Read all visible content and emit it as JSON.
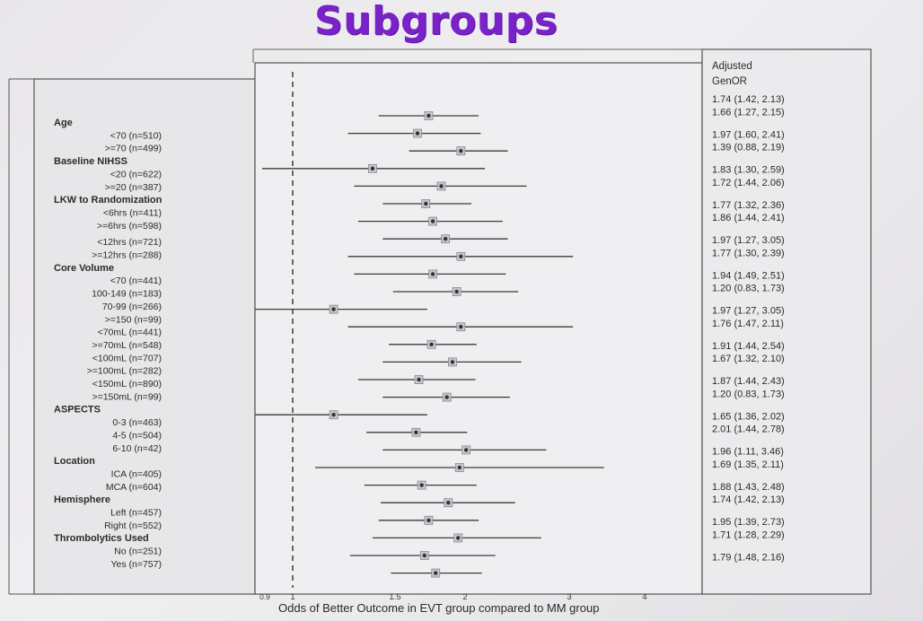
{
  "title": "Subgroups",
  "chart_data": {
    "type": "forest",
    "title": "Subgroups",
    "xlabel": "Odds of Better Outcome in EVT group compared to MM group",
    "x_ticks": [
      "0.9",
      "1",
      "1.5",
      "2",
      "3",
      "4"
    ],
    "reference_line": 1,
    "column_header": [
      "Adjusted",
      "GenOR"
    ],
    "row_labels": [
      {
        "text": "Age",
        "heading": true
      },
      {
        "text": "<70 (n=510)"
      },
      {
        "text": ">=70 (n=499)"
      },
      {
        "text": "Baseline NIHSS",
        "heading": true
      },
      {
        "text": "<20 (n=622)"
      },
      {
        "text": ">=20 (n=387)"
      },
      {
        "text": "LKW to Randomization",
        "heading": true
      },
      {
        "text": "<6hrs (n=411)"
      },
      {
        "text": ">=6hrs (n=598)"
      },
      {
        "text": "<12hrs (n=721)"
      },
      {
        "text": ">=12hrs (n=288)"
      },
      {
        "text": "Core Volume",
        "heading": true
      },
      {
        "text": "<70 (n=441)"
      },
      {
        "text": "100-149 (n=183)"
      },
      {
        "text": "70-99 (n=266)"
      },
      {
        "text": ">=150 (n=99)"
      },
      {
        "text": "<70mL (n=441)"
      },
      {
        "text": ">=70mL (n=548)"
      },
      {
        "text": "<100mL (n=707)"
      },
      {
        "text": ">=100mL (n=282)"
      },
      {
        "text": "<150mL (n=890)"
      },
      {
        "text": ">=150mL (n=99)"
      },
      {
        "text": "ASPECTS",
        "heading": true
      },
      {
        "text": "0-3 (n=463)"
      },
      {
        "text": "4-5 (n=504)"
      },
      {
        "text": "6-10 (n=42)"
      },
      {
        "text": "Location",
        "heading": true
      },
      {
        "text": "ICA (n=405)"
      },
      {
        "text": "MCA (n=604)"
      },
      {
        "text": "Hemisphere",
        "heading": true
      },
      {
        "text": "Left (n=457)"
      },
      {
        "text": "Right (n=552)"
      },
      {
        "text": "Thrombolytics Used",
        "heading": true
      },
      {
        "text": "No (n=251)"
      },
      {
        "text": "Yes (n=757)"
      }
    ],
    "estimates": [
      {
        "or": 1.74,
        "lo": 1.42,
        "hi": 2.13,
        "text": "1.74 (1.42, 2.13)"
      },
      {
        "or": 1.66,
        "lo": 1.27,
        "hi": 2.15,
        "text": "1.66 (1.27, 2.15)"
      },
      {
        "or": 1.97,
        "lo": 1.6,
        "hi": 2.41,
        "text": "1.97 (1.60, 2.41)"
      },
      {
        "or": 1.39,
        "lo": 0.88,
        "hi": 2.19,
        "text": "1.39 (0.88, 2.19)"
      },
      {
        "or": 1.83,
        "lo": 1.3,
        "hi": 2.59,
        "text": "1.83 (1.30, 2.59)"
      },
      {
        "or": 1.72,
        "lo": 1.44,
        "hi": 2.06,
        "text": "1.72 (1.44, 2.06)"
      },
      {
        "or": 1.77,
        "lo": 1.32,
        "hi": 2.36,
        "text": "1.77 (1.32, 2.36)"
      },
      {
        "or": 1.86,
        "lo": 1.44,
        "hi": 2.41,
        "text": "1.86 (1.44, 2.41)"
      },
      {
        "or": 1.97,
        "lo": 1.27,
        "hi": 3.05,
        "text": "1.97 (1.27, 3.05)"
      },
      {
        "or": 1.77,
        "lo": 1.3,
        "hi": 2.39,
        "text": "1.77 (1.30, 2.39)"
      },
      {
        "or": 1.94,
        "lo": 1.49,
        "hi": 2.51,
        "text": "1.94 (1.49, 2.51)"
      },
      {
        "or": 1.2,
        "lo": 0.83,
        "hi": 1.73,
        "text": "1.20 (0.83, 1.73)"
      },
      {
        "or": 1.97,
        "lo": 1.27,
        "hi": 3.05,
        "text": "1.97 (1.27, 3.05)"
      },
      {
        "or": 1.76,
        "lo": 1.47,
        "hi": 2.11,
        "text": "1.76 (1.47, 2.11)"
      },
      {
        "or": 1.91,
        "lo": 1.44,
        "hi": 2.54,
        "text": "1.91 (1.44, 2.54)"
      },
      {
        "or": 1.67,
        "lo": 1.32,
        "hi": 2.1,
        "text": "1.67 (1.32, 2.10)"
      },
      {
        "or": 1.87,
        "lo": 1.44,
        "hi": 2.43,
        "text": "1.87 (1.44, 2.43)"
      },
      {
        "or": 1.2,
        "lo": 0.83,
        "hi": 1.73,
        "text": "1.20 (0.83, 1.73)"
      },
      {
        "or": 1.65,
        "lo": 1.36,
        "hi": 2.02,
        "text": "1.65 (1.36, 2.02)"
      },
      {
        "or": 2.01,
        "lo": 1.44,
        "hi": 2.78,
        "text": "2.01 (1.44, 2.78)"
      },
      {
        "or": 1.96,
        "lo": 1.11,
        "hi": 3.46,
        "text": "1.96 (1.11, 3.46)"
      },
      {
        "or": 1.69,
        "lo": 1.35,
        "hi": 2.11,
        "text": "1.69 (1.35, 2.11)"
      },
      {
        "or": 1.88,
        "lo": 1.43,
        "hi": 2.48,
        "text": "1.88 (1.43, 2.48)"
      },
      {
        "or": 1.74,
        "lo": 1.42,
        "hi": 2.13,
        "text": "1.74 (1.42, 2.13)"
      },
      {
        "or": 1.95,
        "lo": 1.39,
        "hi": 2.73,
        "text": "1.95 (1.39, 2.73)"
      },
      {
        "or": 1.71,
        "lo": 1.28,
        "hi": 2.29,
        "text": "1.71 (1.28, 2.29)"
      },
      {
        "or": 1.79,
        "lo": 1.48,
        "hi": 2.16,
        "text": "1.79 (1.48, 2.16)"
      }
    ],
    "colors": {
      "title": "#7a22c9",
      "axis_label": "#6a1fb0",
      "ink": "#2a2a2a"
    }
  }
}
